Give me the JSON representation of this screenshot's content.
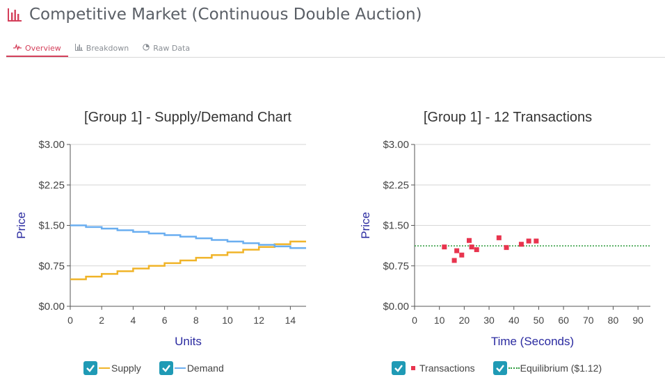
{
  "page": {
    "title": "Competitive Market (Continuous Double Auction)",
    "accent_color": "#d43f5a",
    "logo_icon": "bar-chart-icon"
  },
  "tabs": [
    {
      "label": "Overview",
      "icon": "pulse-icon",
      "active": true
    },
    {
      "label": "Breakdown",
      "icon": "bar-chart-icon",
      "active": false
    },
    {
      "label": "Raw Data",
      "icon": "pie-chart-icon",
      "active": false
    }
  ],
  "chart_data": [
    {
      "type": "line",
      "title": "[Group 1] - Supply/Demand Chart",
      "xlabel": "Units",
      "ylabel": "Price",
      "xlim": [
        0,
        15
      ],
      "ylim": [
        0,
        3
      ],
      "xticks": [
        "0",
        "2",
        "4",
        "6",
        "8",
        "10",
        "12",
        "14"
      ],
      "yticks": [
        "$0.00",
        "$0.75",
        "$1.50",
        "$2.25",
        "$3.00"
      ],
      "step": true,
      "series": [
        {
          "name": "Supply",
          "color": "#f0b429",
          "values": [
            0.5,
            0.55,
            0.6,
            0.65,
            0.7,
            0.75,
            0.8,
            0.85,
            0.9,
            0.95,
            1.0,
            1.05,
            1.1,
            1.15,
            1.2
          ]
        },
        {
          "name": "Demand",
          "color": "#6aaef0",
          "values": [
            1.5,
            1.47,
            1.44,
            1.41,
            1.38,
            1.35,
            1.32,
            1.29,
            1.26,
            1.23,
            1.2,
            1.17,
            1.14,
            1.11,
            1.08
          ]
        }
      ]
    },
    {
      "type": "scatter",
      "title": "[Group 1] - 12 Transactions",
      "xlabel": "Time (Seconds)",
      "ylabel": "Price",
      "xlim": [
        0,
        95
      ],
      "ylim": [
        0,
        3
      ],
      "xticks": [
        "0",
        "10",
        "20",
        "30",
        "40",
        "50",
        "60",
        "70",
        "80",
        "90"
      ],
      "yticks": [
        "$0.00",
        "$0.75",
        "$1.50",
        "$2.25",
        "$3.00"
      ],
      "series": [
        {
          "name": "Transactions",
          "color": "#e8344e",
          "x": [
            12,
            16,
            17,
            19,
            22,
            23,
            25,
            34,
            37,
            43,
            46,
            49
          ],
          "y": [
            1.1,
            0.85,
            1.03,
            0.95,
            1.22,
            1.1,
            1.05,
            1.27,
            1.09,
            1.15,
            1.21,
            1.21
          ]
        }
      ],
      "equilibrium": {
        "name": "Equilibrium ($1.12)",
        "value": 1.12,
        "color": "#2a9a3a"
      }
    }
  ],
  "legend": {
    "supply": "Supply",
    "demand": "Demand",
    "transactions": "Transactions",
    "equilibrium": "Equilibrium ($1.12)",
    "checkbox_color": "#1f9ab5"
  }
}
